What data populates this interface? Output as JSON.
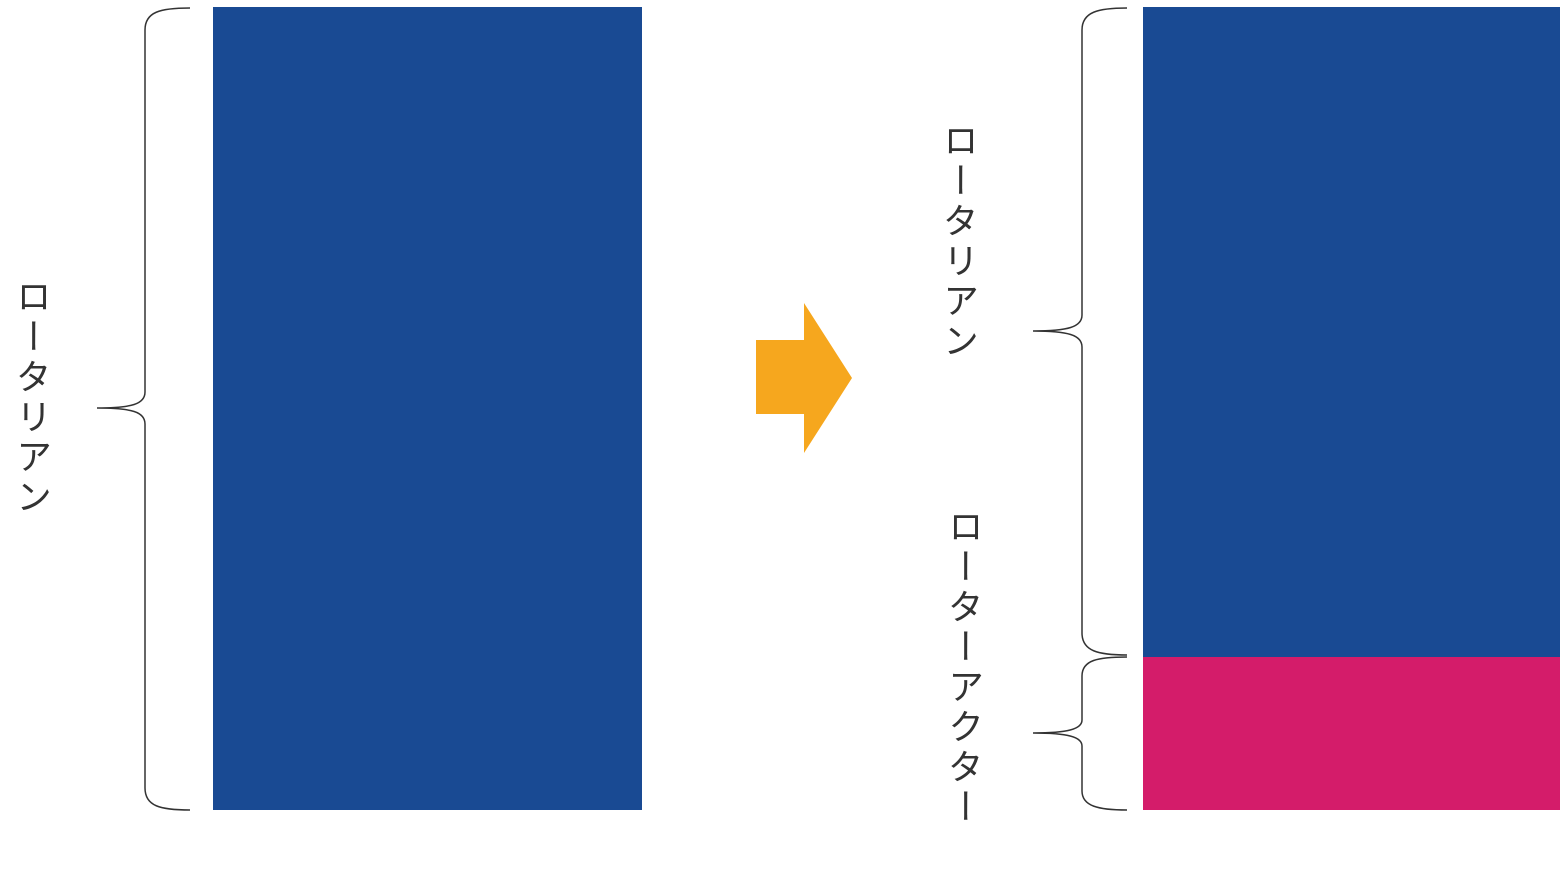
{
  "labels": {
    "before": "ロータリアン",
    "after_top": "ロータリアン",
    "after_bottom": "ローターアクター"
  },
  "colors": {
    "rotarian_block": "#194A93",
    "rotaractor_block": "#D41C6A",
    "arrow": "#F6A71E",
    "bracket": "#333333"
  },
  "icons": {
    "arrow": "right-arrow-icon"
  },
  "proportions": {
    "rotaractor_share_of_after_bar": 0.19
  }
}
